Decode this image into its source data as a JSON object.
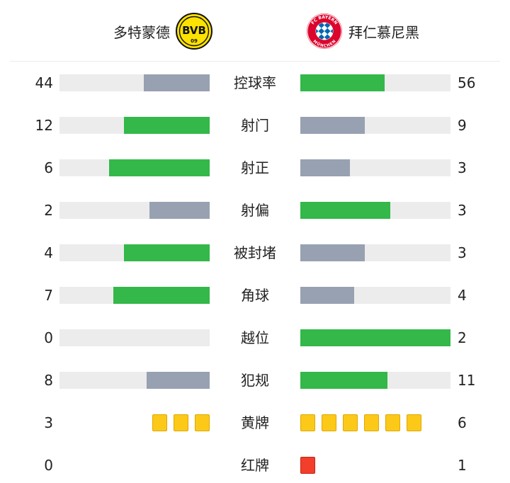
{
  "teams": {
    "home": {
      "name": "多特蒙德",
      "logo_text": "BVB",
      "logo_number": "09"
    },
    "away": {
      "name": "拜仁慕尼黑",
      "logo_text_top": "FC BAYERN",
      "logo_text_bottom": "MÜNCHEN"
    }
  },
  "colors": {
    "leader": "#33b849",
    "trailer": "#97a1b1",
    "track": "#ececec",
    "yellow_card": "#fcc918",
    "red_card": "#f23e2a"
  },
  "stats": [
    {
      "label": "控球率",
      "home": "44",
      "away": "56",
      "home_fraction": 0.44,
      "away_fraction": 0.56
    },
    {
      "label": "射门",
      "home": "12",
      "away": "9",
      "home_fraction": 0.57,
      "away_fraction": 0.43
    },
    {
      "label": "射正",
      "home": "6",
      "away": "3",
      "home_fraction": 0.67,
      "away_fraction": 0.33
    },
    {
      "label": "射偏",
      "home": "2",
      "away": "3",
      "home_fraction": 0.4,
      "away_fraction": 0.6
    },
    {
      "label": "被封堵",
      "home": "4",
      "away": "3",
      "home_fraction": 0.57,
      "away_fraction": 0.43
    },
    {
      "label": "角球",
      "home": "7",
      "away": "4",
      "home_fraction": 0.64,
      "away_fraction": 0.36
    },
    {
      "label": "越位",
      "home": "0",
      "away": "2",
      "home_fraction": 0.0,
      "away_fraction": 1.0
    },
    {
      "label": "犯规",
      "home": "8",
      "away": "11",
      "home_fraction": 0.42,
      "away_fraction": 0.58
    }
  ],
  "cards": [
    {
      "label": "黄牌",
      "home": "3",
      "away": "6",
      "home_count": 3,
      "away_count": 6,
      "type": "yellow"
    },
    {
      "label": "红牌",
      "home": "0",
      "away": "1",
      "home_count": 0,
      "away_count": 1,
      "type": "red"
    }
  ]
}
